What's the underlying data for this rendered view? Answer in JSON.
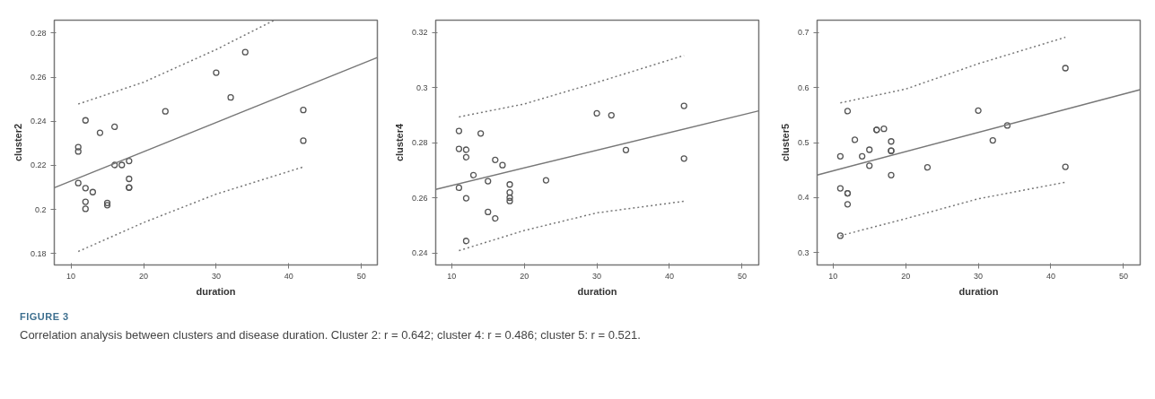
{
  "chart_data": [
    {
      "type": "scatter",
      "xlabel": "duration",
      "ylabel": "cluster2",
      "xlim": [
        7.7,
        52.2
      ],
      "ylim": [
        0.1749,
        0.2858
      ],
      "xticks": [
        10,
        20,
        30,
        40,
        50
      ],
      "yticks": [
        0.18,
        0.2,
        0.22,
        0.24,
        0.26,
        0.28
      ],
      "grid": false,
      "annotations": [
        "FIGURE 3",
        "Correlation analysis between clusters and disease duration. Cluster 2: r = 0.642; cluster 4: r = 0.486; cluster 5: r = 0.521."
      ],
      "series": [
        {
          "color": "#555555",
          "marker": "circle",
          "x": [
            11,
            11,
            11,
            12,
            12,
            12,
            12,
            13,
            14,
            15,
            15,
            16,
            16,
            17,
            18,
            18,
            18,
            18,
            23,
            30,
            32,
            34,
            42,
            42
          ],
          "values": [
            0.2283,
            0.2263,
            0.212,
            0.2404,
            0.2097,
            0.2035,
            0.2003,
            0.2079,
            0.2348,
            0.203,
            0.202,
            0.2375,
            0.2202,
            0.2202,
            0.222,
            0.2139,
            0.21,
            0.2099,
            0.2445,
            0.262,
            0.2508,
            0.2713,
            0.2451,
            0.2312
          ]
        },
        {
          "type": "line",
          "color": "#777777",
          "line_style": "solid",
          "x": [
            7.7,
            52.2
          ],
          "values": [
            0.2099,
            0.2689
          ]
        },
        {
          "type": "line",
          "color": "#777777",
          "line_style": "dotted",
          "x": [
            11,
            20,
            30,
            38
          ],
          "values": [
            0.2478,
            0.2577,
            0.2725,
            0.2858
          ]
        },
        {
          "type": "line",
          "color": "#777777",
          "line_style": "dotted",
          "x": [
            11,
            20,
            30,
            42
          ],
          "values": [
            0.181,
            0.1941,
            0.207,
            0.2193
          ]
        }
      ]
    },
    {
      "type": "scatter",
      "xlabel": "duration",
      "ylabel": "cluster4",
      "xlim": [
        7.8,
        52.3
      ],
      "ylim": [
        0.2357,
        0.3245
      ],
      "xticks": [
        10,
        20,
        30,
        40,
        50
      ],
      "yticks": [
        0.24,
        0.26,
        0.28,
        0.3,
        0.32
      ],
      "grid": false,
      "series": [
        {
          "color": "#555555",
          "marker": "circle",
          "x": [
            11,
            11,
            11,
            12,
            12,
            12,
            12,
            13,
            14,
            15,
            15,
            16,
            16,
            17,
            18,
            18,
            18,
            18,
            23,
            30,
            32,
            34,
            42,
            42
          ],
          "values": [
            0.2843,
            0.2778,
            0.2637,
            0.2775,
            0.2748,
            0.2599,
            0.2444,
            0.2683,
            0.2834,
            0.2661,
            0.2549,
            0.2738,
            0.2526,
            0.2719,
            0.2649,
            0.262,
            0.2601,
            0.2589,
            0.2664,
            0.2907,
            0.29,
            0.2774,
            0.2934,
            0.2743
          ]
        },
        {
          "type": "line",
          "color": "#777777",
          "line_style": "solid",
          "x": [
            7.8,
            52.3
          ],
          "values": [
            0.2631,
            0.2916
          ]
        },
        {
          "type": "line",
          "color": "#777777",
          "line_style": "dotted",
          "x": [
            11,
            20,
            30,
            42
          ],
          "values": [
            0.2894,
            0.2941,
            0.3019,
            0.3117
          ]
        },
        {
          "type": "line",
          "color": "#777777",
          "line_style": "dotted",
          "x": [
            11,
            20,
            30,
            42
          ],
          "values": [
            0.2409,
            0.2482,
            0.2546,
            0.2588
          ]
        }
      ]
    },
    {
      "type": "scatter",
      "xlabel": "duration",
      "ylabel": "cluster5",
      "xlim": [
        7.8,
        52.3
      ],
      "ylim": [
        0.278,
        0.722
      ],
      "xticks": [
        10,
        20,
        30,
        40,
        50
      ],
      "yticks": [
        0.3,
        0.4,
        0.5,
        0.6,
        0.7
      ],
      "grid": false,
      "series": [
        {
          "color": "#555555",
          "marker": "circle",
          "x": [
            11,
            11,
            11,
            12,
            12,
            12,
            12,
            13,
            14,
            15,
            15,
            16,
            16,
            17,
            18,
            18,
            18,
            18,
            23,
            30,
            32,
            34,
            42,
            42
          ],
          "values": [
            0.475,
            0.417,
            0.331,
            0.557,
            0.408,
            0.408,
            0.388,
            0.505,
            0.475,
            0.487,
            0.458,
            0.523,
            0.523,
            0.525,
            0.502,
            0.485,
            0.485,
            0.441,
            0.455,
            0.558,
            0.504,
            0.531,
            0.635,
            0.456
          ]
        },
        {
          "type": "line",
          "color": "#777777",
          "line_style": "solid",
          "x": [
            7.8,
            52.3
          ],
          "values": [
            0.441,
            0.596
          ]
        },
        {
          "type": "line",
          "color": "#777777",
          "line_style": "dotted",
          "x": [
            11,
            20,
            30,
            42
          ],
          "values": [
            0.572,
            0.597,
            0.643,
            0.691
          ]
        },
        {
          "type": "line",
          "color": "#777777",
          "line_style": "dotted",
          "x": [
            11,
            20,
            30,
            42
          ],
          "values": [
            0.331,
            0.362,
            0.398,
            0.428
          ]
        }
      ]
    }
  ]
}
